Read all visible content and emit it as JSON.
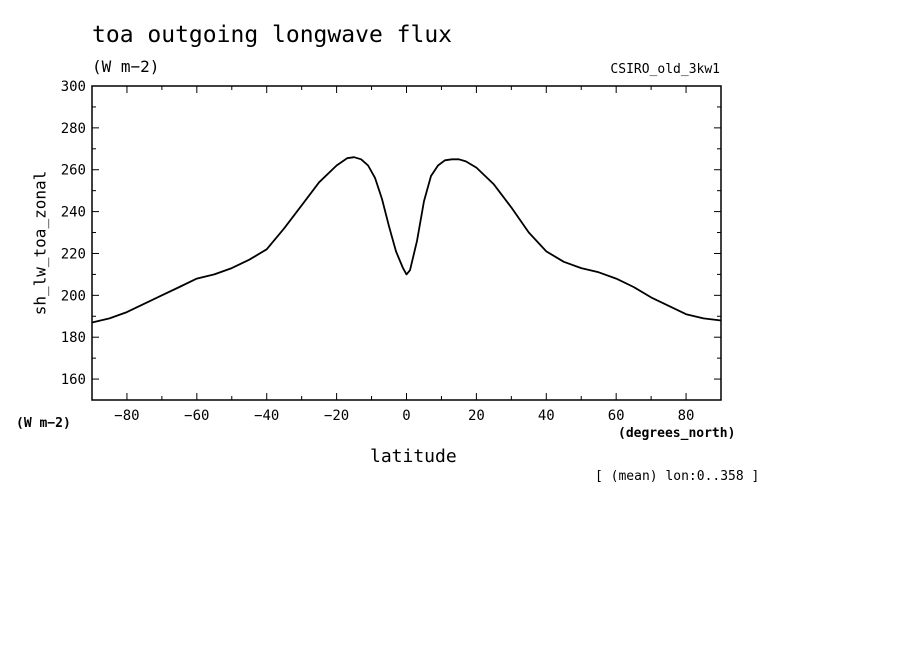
{
  "header": {
    "title": "toa outgoing longwave flux",
    "units": "(W m−2)",
    "model": "CSIRO_old_3kw1"
  },
  "axes": {
    "y_label": "sh_lw_toa_zonal",
    "y_units": "(W m−2)",
    "x_label": "latitude",
    "x_units": "(degrees_north)"
  },
  "footnote": "[ (mean) lon:0..358 ]",
  "chart_data": {
    "type": "line",
    "title": "toa outgoing longwave flux",
    "xlabel": "latitude",
    "ylabel": "sh_lw_toa_zonal",
    "xlim": [
      -90,
      90
    ],
    "ylim": [
      150,
      300
    ],
    "xticks": [
      -80,
      -60,
      -40,
      -20,
      0,
      20,
      40,
      60,
      80
    ],
    "yticks": [
      160,
      180,
      200,
      220,
      240,
      260,
      280,
      300
    ],
    "x_tick_labels": [
      "−80",
      "−60",
      "−40",
      "−20",
      "0",
      "20",
      "40",
      "60",
      "80"
    ],
    "y_tick_labels": [
      "160",
      "180",
      "200",
      "220",
      "240",
      "260",
      "280",
      "300"
    ],
    "line_color": "#000000",
    "series": [
      {
        "x": [
          -90,
          -85,
          -80,
          -75,
          -70,
          -65,
          -60,
          -55,
          -50,
          -45,
          -40,
          -35,
          -30,
          -25,
          -20,
          -17,
          -15,
          -13,
          -11,
          -9,
          -7,
          -5,
          -3,
          -1,
          0,
          1,
          3,
          5,
          7,
          9,
          11,
          13,
          15,
          17,
          20,
          25,
          30,
          35,
          40,
          45,
          50,
          55,
          60,
          65,
          70,
          75,
          80,
          85,
          90
        ],
        "y": [
          187,
          189,
          192,
          196,
          200,
          204,
          208,
          210,
          213,
          217,
          222,
          232,
          243,
          254,
          262,
          265.5,
          266,
          265,
          262,
          256,
          246,
          233,
          221,
          213,
          210,
          212,
          226,
          245,
          257,
          262,
          264.5,
          265,
          265,
          264,
          261,
          253,
          242,
          230,
          221,
          216,
          213,
          211,
          208,
          204,
          199,
          195,
          191,
          189,
          188
        ]
      }
    ],
    "grid": false
  }
}
